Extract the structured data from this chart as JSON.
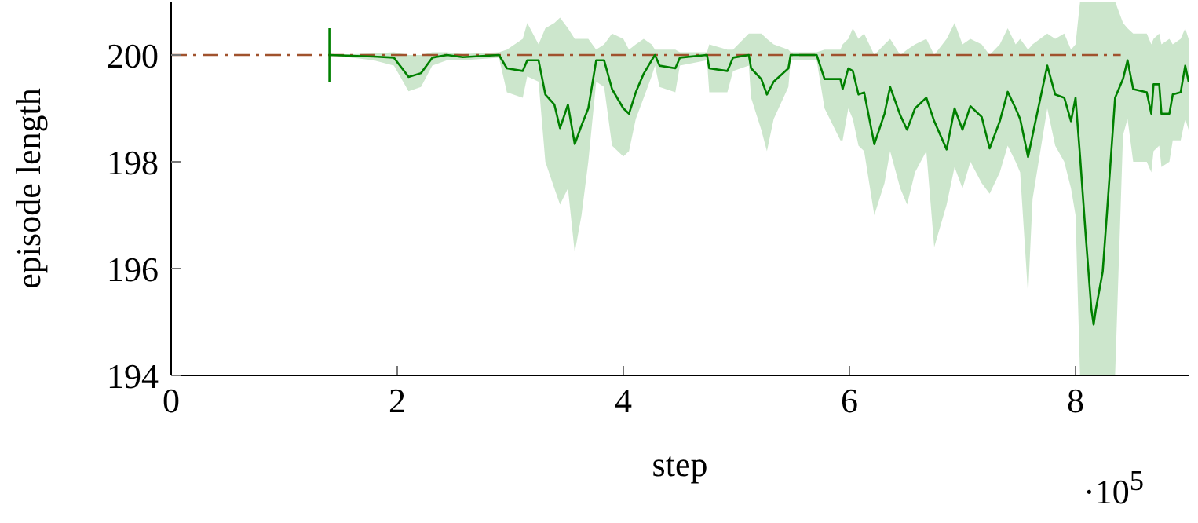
{
  "chart_data": {
    "type": "line",
    "xlabel": "step",
    "ylabel": "episode length",
    "annotations": [
      "·10$^{5}$"
    ],
    "xlim": [
      0,
      9
    ],
    "ylim": [
      194,
      201
    ],
    "xticks": [
      0,
      2,
      4,
      6,
      8
    ],
    "yticks": [
      194,
      196,
      198,
      200
    ],
    "series": [
      {
        "color": "#a0522d",
        "line_style": "dashed",
        "x": [
          0,
          8.4
        ],
        "values": [
          200,
          200
        ]
      },
      {
        "color": "#008000",
        "line_style": "solid",
        "x": [
          1.4,
          1.79,
          1.97,
          2.1,
          2.21,
          2.31,
          2.44,
          2.58,
          2.9,
          2.97,
          3.11,
          3.15,
          3.25,
          3.31,
          3.39,
          3.44,
          3.51,
          3.57,
          3.63,
          3.69,
          3.76,
          3.83,
          3.9,
          4,
          4.05,
          4.11,
          4.18,
          4.25,
          4.28,
          4.32,
          4.46,
          4.5,
          4.74,
          4.76,
          4.92,
          4.97,
          5.11,
          5.13,
          5.22,
          5.27,
          5.33,
          5.46,
          5.48,
          5.71,
          5.78,
          5.92,
          5.94,
          5.99,
          6.03,
          6.08,
          6.13,
          6.22,
          6.31,
          6.36,
          6.45,
          6.51,
          6.58,
          6.68,
          6.75,
          6.86,
          6.93,
          7,
          7.07,
          7.17,
          7.24,
          7.33,
          7.4,
          7.47,
          7.51,
          7.58,
          7.62,
          7.75,
          7.82,
          7.9,
          7.96,
          8,
          8.04,
          8.09,
          8.14,
          8.16,
          8.18,
          8.24,
          8.28,
          8.35,
          8.42,
          8.46,
          8.51,
          8.63,
          8.67,
          8.69,
          8.74,
          8.76,
          8.83,
          8.86,
          8.93,
          8.97,
          9
        ],
        "values": [
          200,
          199.97,
          199.95,
          199.59,
          199.66,
          199.95,
          200,
          199.96,
          200,
          199.75,
          199.7,
          199.9,
          199.9,
          199.26,
          199.07,
          198.63,
          199.07,
          198.33,
          198.68,
          199.0,
          199.9,
          199.9,
          199.36,
          199.0,
          198.9,
          199.3,
          199.65,
          199.9,
          200,
          199.8,
          199.75,
          199.95,
          200,
          199.75,
          199.7,
          199.95,
          200,
          199.75,
          199.55,
          199.26,
          199.5,
          199.75,
          200,
          200,
          199.55,
          199.55,
          199.36,
          199.75,
          199.7,
          199.26,
          199.3,
          198.33,
          198.9,
          199.4,
          198.87,
          198.6,
          199.0,
          199.2,
          198.76,
          198.23,
          199.0,
          198.6,
          199.04,
          198.84,
          198.25,
          198.76,
          199.31,
          199.0,
          198.8,
          198.09,
          198.5,
          199.8,
          199.26,
          199.2,
          198.76,
          199.2,
          198.1,
          196.62,
          195.24,
          194.95,
          195.24,
          195.94,
          197.1,
          199.2,
          199.55,
          199.9,
          199.36,
          199.3,
          198.9,
          199.45,
          199.45,
          198.9,
          198.9,
          199.26,
          199.3,
          199.8,
          199.5
        ],
        "lower": [
          200,
          199.9,
          199.8,
          199.32,
          199.4,
          199.8,
          199.9,
          199.9,
          199.95,
          199.3,
          199.2,
          199.6,
          199.5,
          198.0,
          197.5,
          197.2,
          197.5,
          196.3,
          197.0,
          198.0,
          199.5,
          199.4,
          198.3,
          198.1,
          198.2,
          198.8,
          199.2,
          199.6,
          199.8,
          199.4,
          199.3,
          199.8,
          199.9,
          199.3,
          199.3,
          199.7,
          199.8,
          199.2,
          198.6,
          198.2,
          198.8,
          199.4,
          199.9,
          199.9,
          199.0,
          198.4,
          198.4,
          199.0,
          198.8,
          198.3,
          198.2,
          197.0,
          197.6,
          198.2,
          197.5,
          197.2,
          197.8,
          198.2,
          196.4,
          197.2,
          197.9,
          197.5,
          198.0,
          197.6,
          197.4,
          197.8,
          198.3,
          198.0,
          197.8,
          195.5,
          197.3,
          199.0,
          198.3,
          198.0,
          197.5,
          197.0,
          194,
          194,
          194,
          194,
          194,
          194,
          194,
          194,
          198.5,
          198.8,
          198.0,
          198.0,
          197.8,
          198.2,
          198.3,
          197.9,
          198.0,
          198.4,
          198.4,
          198.8,
          198.6
        ],
        "upper": [
          200,
          200.03,
          200.05,
          200.0,
          200.0,
          200.05,
          200.05,
          200.02,
          200.05,
          200.1,
          200.3,
          200.6,
          200.2,
          200.5,
          200.6,
          200.7,
          200.5,
          200.3,
          200.3,
          200.3,
          200.1,
          200.2,
          200.4,
          200.3,
          200.1,
          200.2,
          200.3,
          200.2,
          200.1,
          200.1,
          200.1,
          200.05,
          200.05,
          200.2,
          200.1,
          200.1,
          200.4,
          200.4,
          200.4,
          200.3,
          200.2,
          200.1,
          200.05,
          200.05,
          200.1,
          200.1,
          200.2,
          200.3,
          200.5,
          200.3,
          200.4,
          200.0,
          200.2,
          200.3,
          200.0,
          200.1,
          200.2,
          200.3,
          200.0,
          200.3,
          200.6,
          200.2,
          200.3,
          200.2,
          200.0,
          200.2,
          200.5,
          200.2,
          200.3,
          200.1,
          200.2,
          200.4,
          200.3,
          200.4,
          200.1,
          200.2,
          201,
          201,
          201,
          201,
          201,
          201,
          201,
          201,
          200.6,
          200.5,
          200.4,
          200.4,
          200.2,
          200.3,
          200.4,
          200.2,
          200.3,
          200.2,
          200.3,
          200.5,
          200.3
        ],
        "errors": [
          0.5,
          null,
          null,
          null,
          null,
          null,
          null,
          null,
          null,
          null,
          null,
          null,
          null,
          null,
          null,
          null,
          null,
          null,
          null,
          null,
          null,
          null,
          null,
          null,
          null,
          null,
          null,
          null,
          null,
          null,
          null,
          null,
          null,
          null,
          null,
          null,
          null,
          null,
          null,
          null,
          null,
          null,
          null,
          null,
          null,
          null,
          null,
          null,
          null,
          null,
          null,
          null,
          null,
          null,
          null,
          null,
          null,
          null,
          null,
          null,
          null,
          null,
          null,
          null,
          null,
          null,
          null,
          null,
          null,
          null,
          null,
          null,
          null,
          null,
          null,
          null,
          null,
          null,
          null,
          null,
          null,
          null,
          null,
          null,
          null,
          null,
          null,
          null,
          null,
          null,
          null,
          null,
          null,
          null,
          null,
          null,
          null
        ]
      }
    ]
  }
}
